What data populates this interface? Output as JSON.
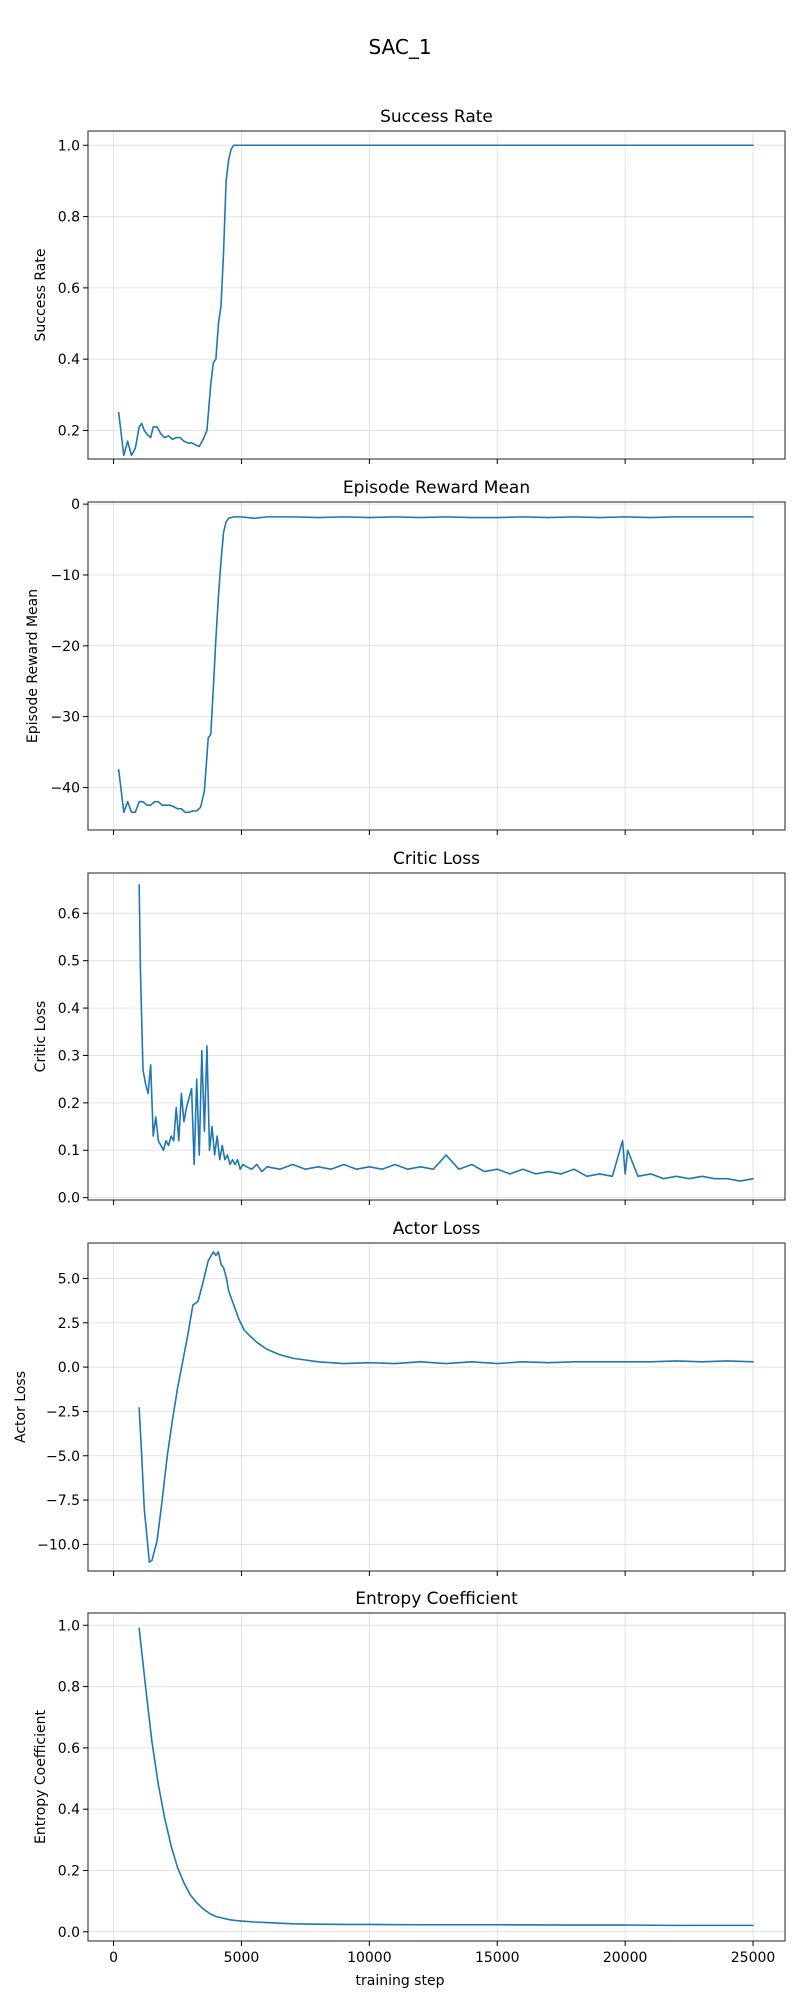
{
  "figure": {
    "title": "SAC_1",
    "xlabel": "training step",
    "line_color": "#1f77b4"
  },
  "chart_data": [
    {
      "type": "line",
      "title": "Success Rate",
      "ylabel": "Success Rate",
      "xlim": [
        -1000,
        26250
      ],
      "ylim": [
        0.12,
        1.04
      ],
      "yticks": [
        0.2,
        0.4,
        0.6,
        0.8,
        1.0
      ],
      "ytick_labels": [
        "0.2",
        "0.4",
        "0.6",
        "0.8",
        "1.0"
      ],
      "xticks": [
        0,
        5000,
        10000,
        15000,
        20000,
        25000
      ],
      "xtick_labels": [
        "0",
        "5000",
        "10000",
        "15000",
        "20000",
        "25000"
      ],
      "show_xtick_labels": false,
      "grid": true,
      "series": [
        {
          "x": [
            200,
            400,
            550,
            700,
            850,
            1000,
            1100,
            1200,
            1300,
            1450,
            1550,
            1700,
            1850,
            2000,
            2150,
            2300,
            2450,
            2600,
            2750,
            2900,
            3050,
            3200,
            3350,
            3500,
            3650,
            3800,
            3900,
            4000,
            4100,
            4200,
            4300,
            4400,
            4500,
            4600,
            4700,
            4800,
            4900,
            5000,
            5100,
            5200,
            6000,
            10000,
            15000,
            20000,
            25000
          ],
          "y": [
            0.25,
            0.13,
            0.17,
            0.13,
            0.15,
            0.21,
            0.22,
            0.2,
            0.19,
            0.18,
            0.21,
            0.21,
            0.19,
            0.18,
            0.185,
            0.175,
            0.18,
            0.18,
            0.17,
            0.165,
            0.165,
            0.16,
            0.155,
            0.175,
            0.2,
            0.33,
            0.39,
            0.4,
            0.5,
            0.55,
            0.7,
            0.9,
            0.96,
            0.99,
            1.0,
            1.0,
            1.0,
            1.0,
            1.0,
            1.0,
            1.0,
            1.0,
            1.0,
            1.0,
            1.0
          ]
        }
      ]
    },
    {
      "type": "line",
      "title": "Episode Reward Mean",
      "ylabel": "Episode Reward Mean",
      "xlim": [
        -1000,
        26250
      ],
      "ylim": [
        -46,
        0.3
      ],
      "yticks": [
        -40,
        -30,
        -20,
        -10,
        0
      ],
      "ytick_labels": [
        "−40",
        "−30",
        "−20",
        "−10",
        "0"
      ],
      "xticks": [
        0,
        5000,
        10000,
        15000,
        20000,
        25000
      ],
      "xtick_labels": [
        "0",
        "5000",
        "10000",
        "15000",
        "20000",
        "25000"
      ],
      "show_xtick_labels": false,
      "grid": true,
      "series": [
        {
          "x": [
            200,
            400,
            550,
            700,
            850,
            1000,
            1150,
            1300,
            1450,
            1600,
            1750,
            1900,
            2050,
            2200,
            2350,
            2500,
            2650,
            2800,
            2950,
            3100,
            3250,
            3400,
            3550,
            3700,
            3800,
            3900,
            4000,
            4100,
            4200,
            4300,
            4400,
            4500,
            4600,
            4700,
            4800,
            5000,
            5500,
            6000,
            7000,
            8000,
            9000,
            10000,
            11000,
            12000,
            13000,
            14000,
            15000,
            16000,
            17000,
            18000,
            19000,
            20000,
            21000,
            22000,
            23000,
            24000,
            25000
          ],
          "y": [
            -37.5,
            -43.5,
            -42,
            -43.5,
            -43.5,
            -42,
            -42,
            -42.5,
            -42.5,
            -42,
            -42,
            -42.5,
            -42.5,
            -42.5,
            -42.7,
            -43,
            -43,
            -43.5,
            -43.5,
            -43.3,
            -43.3,
            -42.8,
            -40.5,
            -33,
            -32.5,
            -26,
            -19,
            -13,
            -8,
            -4,
            -2.5,
            -2.0,
            -1.9,
            -1.8,
            -1.8,
            -1.8,
            -2.0,
            -1.8,
            -1.8,
            -1.9,
            -1.8,
            -1.9,
            -1.8,
            -1.9,
            -1.8,
            -1.9,
            -1.9,
            -1.8,
            -1.9,
            -1.8,
            -1.9,
            -1.8,
            -1.9,
            -1.8,
            -1.8,
            -1.8,
            -1.8
          ]
        }
      ]
    },
    {
      "type": "line",
      "title": "Critic Loss",
      "ylabel": "Critic Loss",
      "xlim": [
        -1000,
        26250
      ],
      "ylim": [
        -0.005,
        0.685
      ],
      "yticks": [
        0.0,
        0.1,
        0.2,
        0.3,
        0.4,
        0.5,
        0.6
      ],
      "ytick_labels": [
        "0.0",
        "0.1",
        "0.2",
        "0.3",
        "0.4",
        "0.5",
        "0.6"
      ],
      "xticks": [
        0,
        5000,
        10000,
        15000,
        20000,
        25000
      ],
      "xtick_labels": [
        "0",
        "5000",
        "10000",
        "15000",
        "20000",
        "25000"
      ],
      "show_xtick_labels": false,
      "grid": true,
      "series": [
        {
          "x": [
            1000,
            1050,
            1150,
            1250,
            1350,
            1450,
            1550,
            1650,
            1750,
            1850,
            1950,
            2050,
            2150,
            2250,
            2350,
            2450,
            2550,
            2650,
            2750,
            2850,
            2950,
            3050,
            3150,
            3250,
            3350,
            3450,
            3550,
            3650,
            3750,
            3850,
            3950,
            4050,
            4150,
            4250,
            4350,
            4450,
            4550,
            4650,
            4750,
            4850,
            4950,
            5050,
            5200,
            5400,
            5600,
            5800,
            6000,
            6500,
            7000,
            7500,
            8000,
            8500,
            9000,
            9500,
            10000,
            10500,
            11000,
            11500,
            12000,
            12500,
            13000,
            13500,
            14000,
            14500,
            15000,
            15500,
            16000,
            16500,
            17000,
            17500,
            18000,
            18500,
            19000,
            19500,
            19900,
            20000,
            20100,
            20500,
            21000,
            21500,
            22000,
            22500,
            23000,
            23500,
            24000,
            24500,
            25000
          ],
          "y": [
            0.66,
            0.48,
            0.27,
            0.24,
            0.22,
            0.28,
            0.13,
            0.17,
            0.12,
            0.11,
            0.1,
            0.12,
            0.11,
            0.13,
            0.12,
            0.19,
            0.12,
            0.22,
            0.16,
            0.19,
            0.21,
            0.23,
            0.07,
            0.25,
            0.09,
            0.31,
            0.14,
            0.32,
            0.1,
            0.15,
            0.09,
            0.13,
            0.08,
            0.11,
            0.08,
            0.09,
            0.07,
            0.08,
            0.07,
            0.08,
            0.06,
            0.07,
            0.065,
            0.06,
            0.07,
            0.055,
            0.065,
            0.06,
            0.07,
            0.06,
            0.065,
            0.06,
            0.07,
            0.06,
            0.065,
            0.06,
            0.07,
            0.06,
            0.065,
            0.06,
            0.09,
            0.06,
            0.07,
            0.055,
            0.06,
            0.05,
            0.06,
            0.05,
            0.055,
            0.05,
            0.06,
            0.045,
            0.05,
            0.045,
            0.12,
            0.05,
            0.1,
            0.045,
            0.05,
            0.04,
            0.045,
            0.04,
            0.045,
            0.04,
            0.04,
            0.035,
            0.04
          ]
        }
      ]
    },
    {
      "type": "line",
      "title": "Actor Loss",
      "ylabel": "Actor Loss",
      "xlim": [
        -1000,
        26250
      ],
      "ylim": [
        -11.5,
        7.0
      ],
      "yticks": [
        -10.0,
        -7.5,
        -5.0,
        -2.5,
        0.0,
        2.5,
        5.0
      ],
      "ytick_labels": [
        "−10.0",
        "−7.5",
        "−5.0",
        "−2.5",
        "0.0",
        "2.5",
        "5.0"
      ],
      "xticks": [
        0,
        5000,
        10000,
        15000,
        20000,
        25000
      ],
      "xtick_labels": [
        "0",
        "5000",
        "10000",
        "15000",
        "20000",
        "25000"
      ],
      "show_xtick_labels": false,
      "grid": true,
      "series": [
        {
          "x": [
            1000,
            1100,
            1200,
            1300,
            1400,
            1500,
            1700,
            1900,
            2100,
            2300,
            2500,
            2700,
            2900,
            3100,
            3300,
            3500,
            3700,
            3900,
            4000,
            4100,
            4200,
            4300,
            4400,
            4500,
            4700,
            4900,
            5100,
            5300,
            5600,
            6000,
            6500,
            7000,
            7500,
            8000,
            8500,
            9000,
            10000,
            11000,
            12000,
            13000,
            14000,
            15000,
            16000,
            17000,
            18000,
            19000,
            20000,
            21000,
            22000,
            23000,
            24000,
            25000
          ],
          "y": [
            -2.3,
            -5.0,
            -8.0,
            -9.5,
            -11.0,
            -10.9,
            -9.8,
            -7.5,
            -5.0,
            -3.0,
            -1.2,
            0.3,
            1.8,
            3.5,
            3.7,
            4.8,
            6.0,
            6.5,
            6.3,
            6.5,
            5.8,
            5.6,
            5.1,
            4.3,
            3.5,
            2.7,
            2.1,
            1.8,
            1.4,
            1.0,
            0.7,
            0.5,
            0.4,
            0.3,
            0.25,
            0.2,
            0.25,
            0.2,
            0.3,
            0.2,
            0.3,
            0.2,
            0.3,
            0.25,
            0.3,
            0.3,
            0.3,
            0.3,
            0.35,
            0.3,
            0.35,
            0.3
          ]
        }
      ]
    },
    {
      "type": "line",
      "title": "Entropy Coefficient",
      "ylabel": "Entropy Coefficient",
      "xlim": [
        -1000,
        26250
      ],
      "ylim": [
        -0.03,
        1.04
      ],
      "yticks": [
        0.0,
        0.2,
        0.4,
        0.6,
        0.8,
        1.0
      ],
      "ytick_labels": [
        "0.0",
        "0.2",
        "0.4",
        "0.6",
        "0.8",
        "1.0"
      ],
      "xticks": [
        0,
        5000,
        10000,
        15000,
        20000,
        25000
      ],
      "xtick_labels": [
        "0",
        "5000",
        "10000",
        "15000",
        "20000",
        "25000"
      ],
      "show_xtick_labels": true,
      "grid": true,
      "series": [
        {
          "x": [
            1000,
            1250,
            1500,
            1750,
            2000,
            2250,
            2500,
            2750,
            3000,
            3250,
            3500,
            3750,
            4000,
            4250,
            4500,
            4750,
            5000,
            5500,
            6000,
            6500,
            7000,
            8000,
            9000,
            10000,
            12000,
            15000,
            18000,
            20000,
            22000,
            25000
          ],
          "y": [
            0.99,
            0.8,
            0.62,
            0.48,
            0.37,
            0.28,
            0.21,
            0.16,
            0.12,
            0.095,
            0.075,
            0.06,
            0.05,
            0.045,
            0.04,
            0.037,
            0.035,
            0.032,
            0.03,
            0.028,
            0.026,
            0.025,
            0.024,
            0.024,
            0.023,
            0.023,
            0.022,
            0.022,
            0.021,
            0.021
          ]
        }
      ]
    }
  ]
}
